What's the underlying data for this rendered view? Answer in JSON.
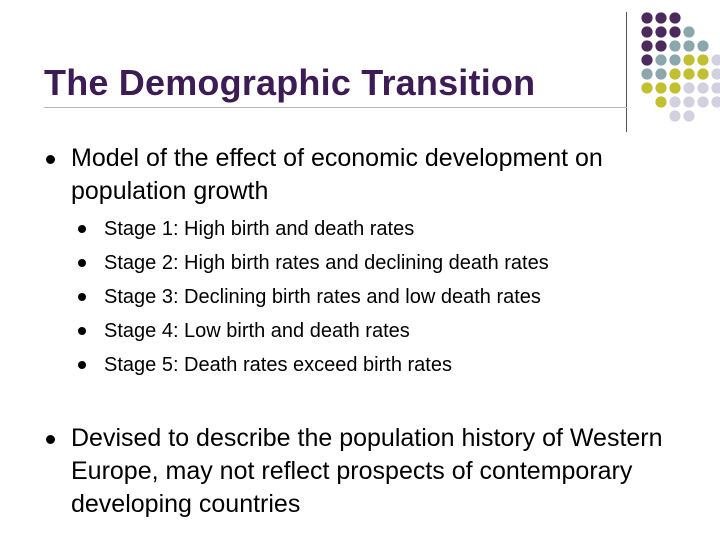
{
  "slide": {
    "title": "The Demographic Transition",
    "bullets": [
      "Model of the effect of economic development on population growth",
      "Devised to describe the population history of Western Europe, may not reflect prospects of contemporary developing countries"
    ],
    "sub_bullets": [
      "Stage 1: High birth and death rates",
      "Stage 2: High birth rates and declining death rates",
      "Stage 3: Declining birth rates and low death rates",
      "Stage 4: Low birth and death rates",
      "Stage 5: Death rates exceed birth rates"
    ]
  },
  "decoration": {
    "dot_colors": {
      "purple": "#4b2a5c",
      "teal": "#8ca7ac",
      "olive": "#c2c030",
      "lavender": "#d3d1e0"
    },
    "dot_grid": [
      [
        "purple",
        "purple",
        "purple",
        "",
        "",
        ""
      ],
      [
        "purple",
        "purple",
        "purple",
        "teal",
        "",
        ""
      ],
      [
        "purple",
        "purple",
        "teal",
        "teal",
        "teal",
        ""
      ],
      [
        "purple",
        "teal",
        "teal",
        "olive",
        "olive",
        "lavender"
      ],
      [
        "teal",
        "teal",
        "olive",
        "olive",
        "olive",
        "lavender"
      ],
      [
        "olive",
        "olive",
        "olive",
        "lavender",
        "lavender",
        "lavender"
      ],
      [
        "",
        "olive",
        "lavender",
        "lavender",
        "lavender",
        "lavender"
      ],
      [
        "",
        "",
        "lavender",
        "lavender",
        "",
        ""
      ]
    ]
  }
}
